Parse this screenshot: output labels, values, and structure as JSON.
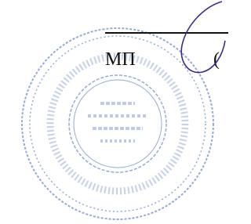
{
  "document": {
    "stamp_label": "МП",
    "bracket": "("
  }
}
